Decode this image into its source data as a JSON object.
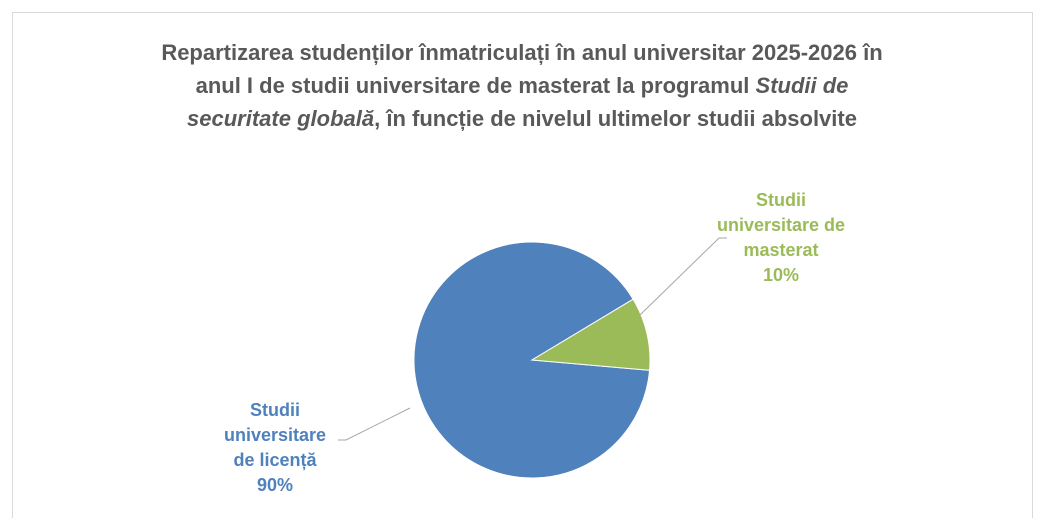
{
  "chart_data": {
    "type": "pie",
    "title": [
      {
        "text": "Repartizarea studenților înmatriculați în anul universitar 2025-2026 în anul I de studii universitare de masterat la programul ",
        "italic": false
      },
      {
        "text": "Studii de securitate globală",
        "italic": true
      },
      {
        "text": ", în funcție de nivelul ultimelor studii absolvite",
        "italic": false
      }
    ],
    "categories": [
      "Studii universitare de licență",
      "Studii universitare de masterat"
    ],
    "values": [
      90,
      10
    ],
    "value_labels": [
      "90%",
      "10%"
    ],
    "colors": [
      "#4f81bd",
      "#9bbb59"
    ],
    "first_slice_angle": 95
  }
}
